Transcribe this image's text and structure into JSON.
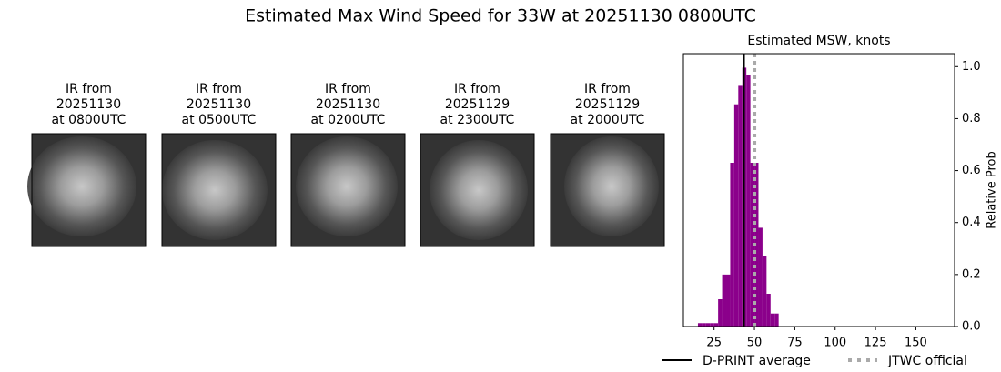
{
  "title": "Estimated Max Wind Speed for 33W at 20251130 0800UTC",
  "panels": [
    {
      "lines": [
        "IR from",
        "20251130",
        "at 0800UTC"
      ]
    },
    {
      "lines": [
        "IR from",
        "20251130",
        "at 0500UTC"
      ]
    },
    {
      "lines": [
        "IR from",
        "20251130",
        "at 0200UTC"
      ]
    },
    {
      "lines": [
        "IR from",
        "20251129",
        "at 2300UTC"
      ]
    },
    {
      "lines": [
        "IR from",
        "20251129",
        "at 2000UTC"
      ]
    }
  ],
  "chart_data": {
    "type": "histogram",
    "title": "Estimated MSW, knots",
    "ylabel": "Relative Prob",
    "color": "#8b008b",
    "bins": [
      15,
      17.5,
      20,
      22.5,
      25,
      27.5,
      30,
      32.5,
      35,
      37.5,
      40,
      42.5,
      45,
      47.5,
      50,
      52.5,
      55,
      57.5,
      60,
      62.5,
      65
    ],
    "values": [
      0.013,
      0.013,
      0.013,
      0.013,
      0.013,
      0.105,
      0.2,
      0.2,
      0.63,
      0.855,
      0.926,
      0.996,
      0.968,
      0.63,
      0.63,
      0.38,
      0.27,
      0.126,
      0.05,
      0.05
    ],
    "xlim": [
      6,
      174
    ],
    "ylim": [
      0,
      1.05
    ],
    "xticks": [
      25,
      50,
      75,
      100,
      125,
      150
    ],
    "yticks": [
      {
        "value": 0,
        "label": "0.0"
      },
      0.2,
      0.4,
      0.6,
      0.8,
      {
        "value": 1,
        "label": "1.0"
      }
    ],
    "reference_lines": [
      {
        "name": "D-PRINT average",
        "value": 43.5,
        "color": "#000000",
        "style": "solid"
      },
      {
        "name": "JTWC official",
        "value": 50,
        "color": "#aaaaaa",
        "style": "dotted"
      }
    ]
  }
}
